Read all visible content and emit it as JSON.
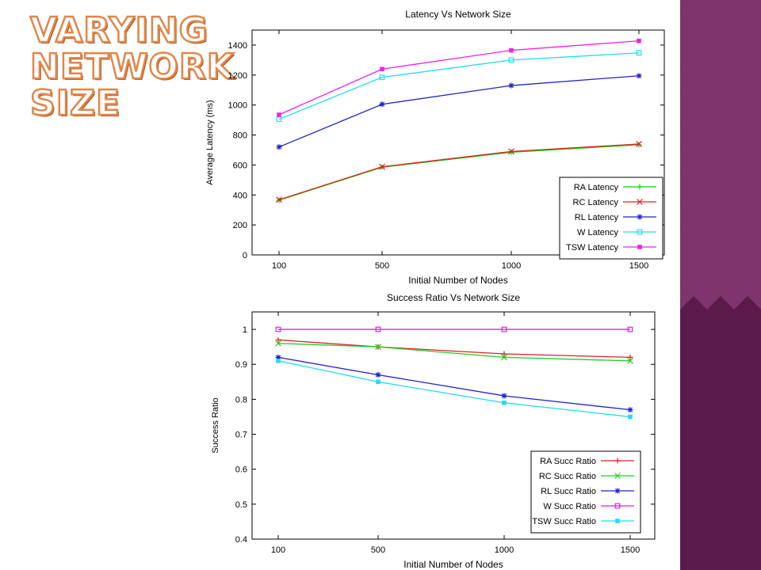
{
  "slide": {
    "title": "Varying Network Size",
    "colors": {
      "title_fill": "#ffffff",
      "title_outline": "#e0874a",
      "side_pattern_dark": "#5a1a4a",
      "side_pattern_light": "#9c4a8a"
    }
  },
  "chart_data": [
    {
      "type": "line",
      "title": "Latency Vs Network Size",
      "xlabel": "Initial Number of Nodes",
      "ylabel": "Average Latency (ms)",
      "categories": [
        "100",
        "500",
        "1000",
        "1500"
      ],
      "yticks": [
        0,
        200,
        400,
        600,
        800,
        1000,
        1200,
        1400
      ],
      "ylim": [
        0,
        1500
      ],
      "grid": false,
      "legend_position": "bottom-right",
      "series": [
        {
          "name": "RA Latency",
          "values": [
            365,
            585,
            685,
            735
          ],
          "color": "#00dd00",
          "marker": "plus"
        },
        {
          "name": "RC Latency",
          "values": [
            368,
            588,
            690,
            740
          ],
          "color": "#dd2222",
          "marker": "x"
        },
        {
          "name": "RL Latency",
          "values": [
            720,
            1005,
            1130,
            1195
          ],
          "color": "#2222cc",
          "marker": "star"
        },
        {
          "name": "W Latency",
          "values": [
            905,
            1185,
            1300,
            1348
          ],
          "color": "#22ddee",
          "marker": "square-open"
        },
        {
          "name": "TSW Latency",
          "values": [
            935,
            1240,
            1365,
            1428
          ],
          "color": "#ee22ee",
          "marker": "square-filled"
        }
      ]
    },
    {
      "type": "line",
      "title": "Success Ratio Vs Network Size",
      "xlabel": "Initial Number of Nodes",
      "ylabel": "Success Ratio",
      "categories": [
        "100",
        "500",
        "1000",
        "1500"
      ],
      "yticks": [
        0.4,
        0.5,
        0.6,
        0.7,
        0.8,
        0.9,
        1
      ],
      "ylim": [
        0.4,
        1.05
      ],
      "grid": false,
      "legend_position": "bottom-right",
      "series": [
        {
          "name": "RA Succ Ratio",
          "values": [
            0.97,
            0.95,
            0.93,
            0.92
          ],
          "color": "#dd2222",
          "marker": "plus"
        },
        {
          "name": "RC Succ Ratio",
          "values": [
            0.96,
            0.95,
            0.92,
            0.91
          ],
          "color": "#22cc22",
          "marker": "x"
        },
        {
          "name": "RL Succ Ratio",
          "values": [
            0.92,
            0.87,
            0.81,
            0.77
          ],
          "color": "#2222cc",
          "marker": "star"
        },
        {
          "name": "W Succ Ratio",
          "values": [
            1.0,
            1.0,
            1.0,
            1.0
          ],
          "color": "#dd22dd",
          "marker": "square-open"
        },
        {
          "name": "TSW Succ Ratio",
          "values": [
            0.91,
            0.85,
            0.79,
            0.75
          ],
          "color": "#22ddee",
          "marker": "square-filled"
        }
      ]
    }
  ]
}
